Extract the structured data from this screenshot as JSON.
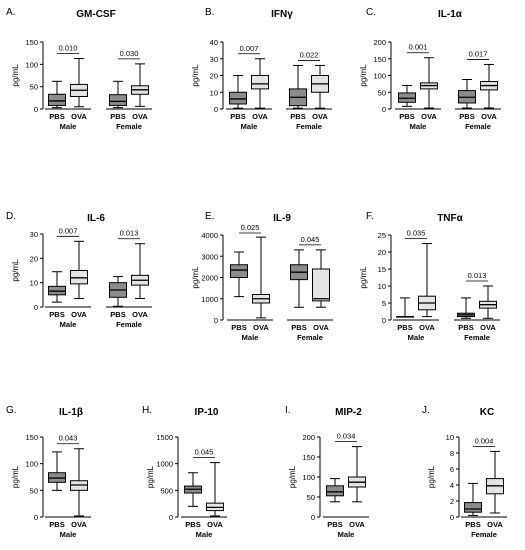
{
  "figure": {
    "title": ""
  },
  "colors": {
    "pbs_fill": "#8c8c8c",
    "ova_fill": "#e4e4e4",
    "stroke": "#000000"
  },
  "chart_data": [
    {
      "type": "boxplot",
      "panel_letter": "A.",
      "title": "GM-CSF",
      "ylabel": "pg/mL",
      "ylim": [
        0,
        150
      ],
      "yticks": [
        "0",
        "50",
        "100",
        "150"
      ],
      "groups": [
        {
          "name": "Male",
          "pvalue": "0.010",
          "boxes": [
            {
              "label": "PBS",
              "min": 3,
              "q1": 8,
              "median": 18,
              "q3": 33,
              "max": 62
            },
            {
              "label": "OVA",
              "min": 5,
              "q1": 28,
              "median": 42,
              "q3": 55,
              "max": 113
            }
          ]
        },
        {
          "name": "Female",
          "pvalue": "0.030",
          "boxes": [
            {
              "label": "PBS",
              "min": 3,
              "q1": 8,
              "median": 17,
              "q3": 32,
              "max": 62
            },
            {
              "label": "OVA",
              "min": 6,
              "q1": 33,
              "median": 43,
              "q3": 52,
              "max": 101
            }
          ]
        }
      ]
    },
    {
      "type": "boxplot",
      "panel_letter": "B.",
      "title": "IFNγ",
      "ylabel": "pg/mL",
      "ylim": [
        0,
        40
      ],
      "yticks": [
        "0",
        "10",
        "20",
        "30",
        "40"
      ],
      "groups": [
        {
          "name": "Male",
          "pvalue": "0.007",
          "boxes": [
            {
              "label": "PBS",
              "min": 0.5,
              "q1": 3,
              "median": 6,
              "q3": 10,
              "max": 20
            },
            {
              "label": "OVA",
              "min": 0.5,
              "q1": 12,
              "median": 15,
              "q3": 20,
              "max": 30
            }
          ]
        },
        {
          "name": "Female",
          "pvalue": "0.022",
          "boxes": [
            {
              "label": "PBS",
              "min": 0.5,
              "q1": 2,
              "median": 7,
              "q3": 12,
              "max": 26
            },
            {
              "label": "OVA",
              "min": 0.5,
              "q1": 10,
              "median": 15,
              "q3": 20,
              "max": 26
            }
          ]
        }
      ]
    },
    {
      "type": "boxplot",
      "panel_letter": "C.",
      "title": "IL-1α",
      "ylabel": "pg/mL",
      "ylim": [
        0,
        200
      ],
      "yticks": [
        "0",
        "50",
        "100",
        "150",
        "200"
      ],
      "groups": [
        {
          "name": "Male",
          "pvalue": "0.001",
          "boxes": [
            {
              "label": "PBS",
              "min": 8,
              "q1": 20,
              "median": 32,
              "q3": 48,
              "max": 70
            },
            {
              "label": "OVA",
              "min": 3,
              "q1": 60,
              "median": 70,
              "q3": 78,
              "max": 153
            }
          ]
        },
        {
          "name": "Female",
          "pvalue": "0.017",
          "boxes": [
            {
              "label": "PBS",
              "min": 3,
              "q1": 18,
              "median": 35,
              "q3": 55,
              "max": 88
            },
            {
              "label": "OVA",
              "min": 3,
              "q1": 57,
              "median": 70,
              "q3": 82,
              "max": 133
            }
          ]
        }
      ]
    },
    {
      "type": "boxplot",
      "panel_letter": "D.",
      "title": "IL-6",
      "ylabel": "pg/mL",
      "ylim": [
        0,
        30
      ],
      "yticks": [
        "0",
        "10",
        "20",
        "30"
      ],
      "groups": [
        {
          "name": "Male",
          "pvalue": "0.007",
          "boxes": [
            {
              "label": "PBS",
              "min": 2,
              "q1": 5,
              "median": 6.5,
              "q3": 8.5,
              "max": 14.5
            },
            {
              "label": "OVA",
              "min": 3.5,
              "q1": 9.5,
              "median": 12,
              "q3": 15,
              "max": 27
            }
          ]
        },
        {
          "name": "Female",
          "pvalue": "0.013",
          "boxes": [
            {
              "label": "PBS",
              "min": 0.3,
              "q1": 4,
              "median": 7,
              "q3": 10,
              "max": 12.5
            },
            {
              "label": "OVA",
              "min": 3.5,
              "q1": 9,
              "median": 11,
              "q3": 13,
              "max": 26
            }
          ]
        }
      ]
    },
    {
      "type": "boxplot",
      "panel_letter": "E.",
      "title": "IL-9",
      "ylabel": "pg/mL",
      "ylim": [
        0,
        4000
      ],
      "yticks": [
        "0",
        "1000",
        "2000",
        "3000",
        "4000"
      ],
      "groups": [
        {
          "name": "Male",
          "pvalue": "0.025",
          "boxes": [
            {
              "label": "PBS",
              "min": 1100,
              "q1": 2000,
              "median": 2350,
              "q3": 2600,
              "max": 3200
            },
            {
              "label": "OVA",
              "min": 100,
              "q1": 800,
              "median": 1000,
              "q3": 1200,
              "max": 3900
            }
          ]
        },
        {
          "name": "Female",
          "pvalue": "0.045",
          "boxes": [
            {
              "label": "PBS",
              "min": 600,
              "q1": 1900,
              "median": 2250,
              "q3": 2600,
              "max": 3300
            },
            {
              "label": "OVA",
              "min": 600,
              "q1": 900,
              "median": 1000,
              "q3": 2400,
              "max": 3300
            }
          ]
        }
      ]
    },
    {
      "type": "boxplot",
      "panel_letter": "F.",
      "title": "TNFα",
      "ylabel": "pg/mL",
      "ylim": [
        0,
        25
      ],
      "yticks": [
        "0",
        "5",
        "10",
        "15",
        "20",
        "25"
      ],
      "groups": [
        {
          "name": "Male",
          "pvalue": "0.035",
          "boxes": [
            {
              "label": "PBS",
              "min": 1,
              "q1": 1,
              "median": 1,
              "q3": 1,
              "max": 6.5
            },
            {
              "label": "OVA",
              "min": 1,
              "q1": 3,
              "median": 5,
              "q3": 7,
              "max": 22.5
            }
          ]
        },
        {
          "name": "Female",
          "pvalue": "0.013",
          "boxes": [
            {
              "label": "PBS",
              "min": 0.5,
              "q1": 1,
              "median": 1.5,
              "q3": 2,
              "max": 6.5
            },
            {
              "label": "OVA",
              "min": 0.5,
              "q1": 3.5,
              "median": 4.5,
              "q3": 5.5,
              "max": 10
            }
          ]
        }
      ]
    },
    {
      "type": "boxplot",
      "panel_letter": "G.",
      "title": "IL-1β",
      "ylabel": "pg/mL",
      "ylim": [
        0,
        150
      ],
      "yticks": [
        "0",
        "50",
        "100",
        "150"
      ],
      "groups": [
        {
          "name": "Male",
          "pvalue": "0.043",
          "boxes": [
            {
              "label": "PBS",
              "min": 50,
              "q1": 65,
              "median": 73,
              "q3": 83,
              "max": 122
            },
            {
              "label": "OVA",
              "min": 2,
              "q1": 50,
              "median": 60,
              "q3": 68,
              "max": 128
            }
          ]
        }
      ]
    },
    {
      "type": "boxplot",
      "panel_letter": "H.",
      "title": "IP-10",
      "ylabel": "pg/mL",
      "ylim": [
        0,
        1500
      ],
      "yticks": [
        "0",
        "500",
        "1000",
        "1500"
      ],
      "groups": [
        {
          "name": "Male",
          "pvalue": "0.045",
          "boxes": [
            {
              "label": "PBS",
              "min": 200,
              "q1": 450,
              "median": 520,
              "q3": 580,
              "max": 830
            },
            {
              "label": "OVA",
              "min": 20,
              "q1": 120,
              "median": 180,
              "q3": 260,
              "max": 1020
            }
          ]
        }
      ]
    },
    {
      "type": "boxplot",
      "panel_letter": "I.",
      "title": "MIP-2",
      "ylabel": "pg/mL",
      "ylim": [
        0,
        200
      ],
      "yticks": [
        "0",
        "50",
        "100",
        "150",
        "200"
      ],
      "groups": [
        {
          "name": "Male",
          "pvalue": "0.034",
          "boxes": [
            {
              "label": "PBS",
              "min": 38,
              "q1": 53,
              "median": 63,
              "q3": 78,
              "max": 96
            },
            {
              "label": "OVA",
              "min": 38,
              "q1": 75,
              "median": 87,
              "q3": 100,
              "max": 176
            }
          ]
        }
      ]
    },
    {
      "type": "boxplot",
      "panel_letter": "J.",
      "title": "KC",
      "ylabel": "pg/mL",
      "ylim": [
        0,
        10
      ],
      "yticks": [
        "0",
        "2",
        "4",
        "6",
        "8",
        "10"
      ],
      "groups": [
        {
          "name": "Female",
          "pvalue": "0.004",
          "boxes": [
            {
              "label": "PBS",
              "min": 0.2,
              "q1": 0.6,
              "median": 1,
              "q3": 1.8,
              "max": 4.2
            },
            {
              "label": "OVA",
              "min": 0.5,
              "q1": 2.9,
              "median": 3.9,
              "q3": 4.8,
              "max": 8.2
            }
          ]
        }
      ]
    }
  ]
}
